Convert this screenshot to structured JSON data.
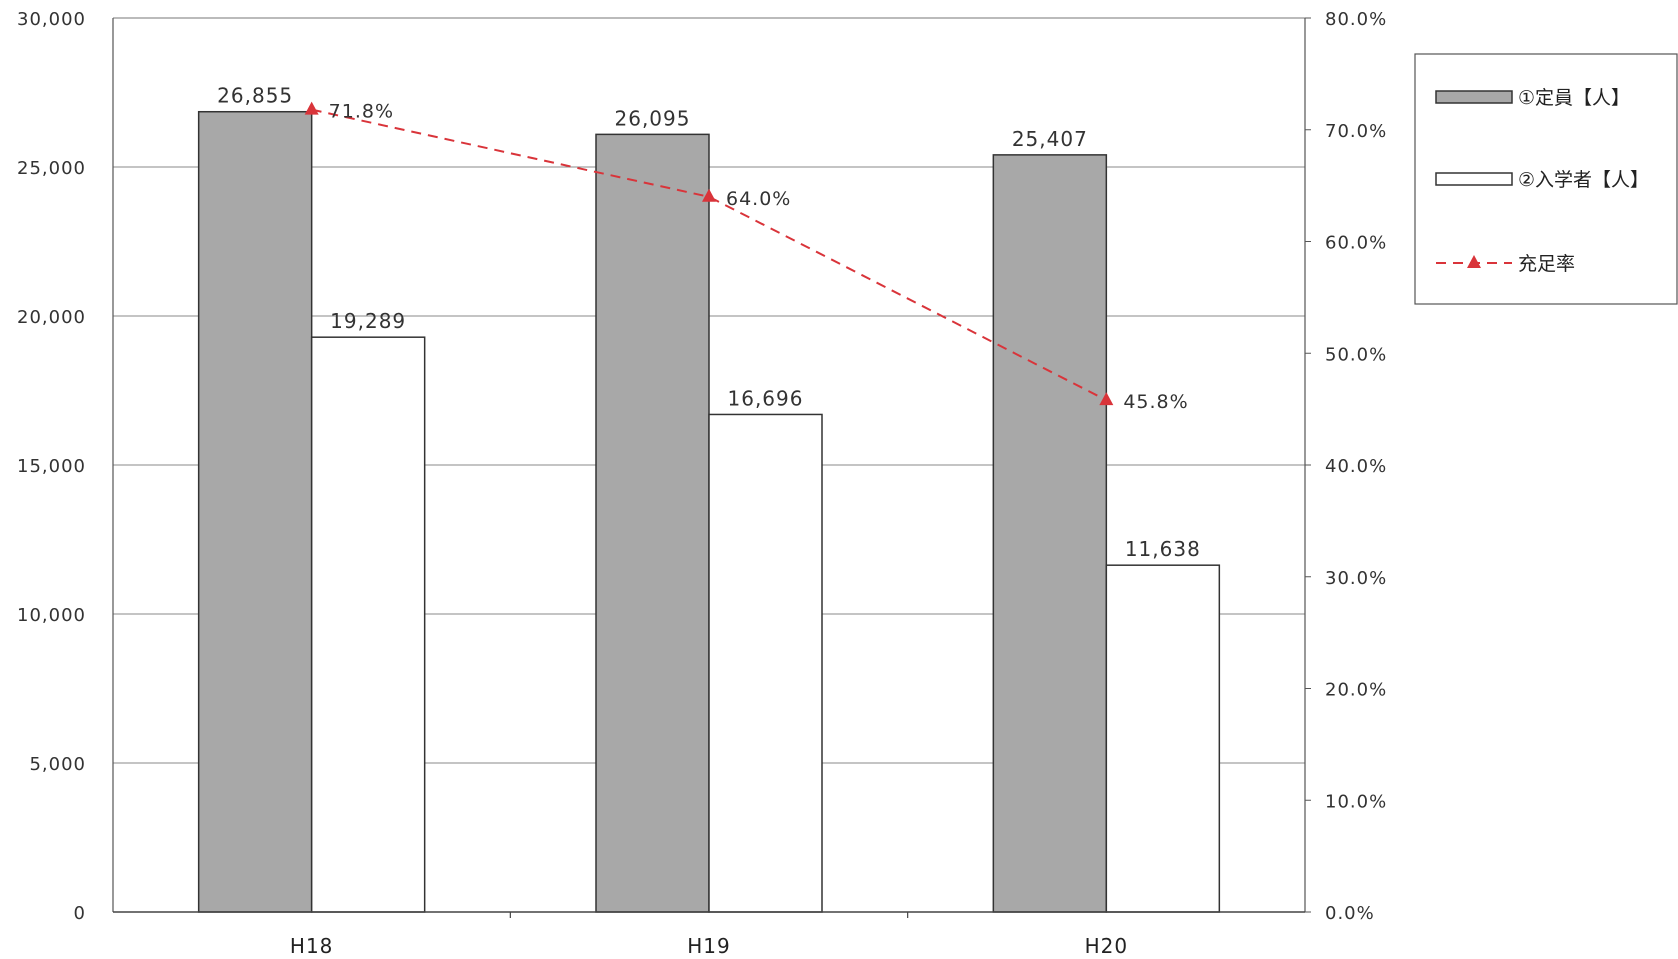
{
  "chart_data": {
    "type": "bar",
    "categories": [
      "H18",
      "H19",
      "H20"
    ],
    "series": [
      {
        "name": "①定員【人】",
        "type": "bar",
        "axis": "left",
        "values": [
          26855,
          26095,
          25407
        ],
        "labels": [
          "26,855",
          "26,095",
          "25,407"
        ],
        "color": "#a8a8a8"
      },
      {
        "name": "②入学者【人】",
        "type": "bar",
        "axis": "left",
        "values": [
          19289,
          16696,
          11638
        ],
        "labels": [
          "19,289",
          "16,696",
          "11,638"
        ],
        "color": "#ffffff"
      },
      {
        "name": "充足率",
        "type": "line",
        "axis": "right",
        "values": [
          71.8,
          64.0,
          45.8
        ],
        "labels": [
          "71.8%",
          "64.0%",
          "45.8%"
        ],
        "color": "#d9343a",
        "style": "dashed",
        "marker": "triangle"
      }
    ],
    "y_left": {
      "ylim": [
        0,
        30000
      ],
      "ticks": [
        0,
        5000,
        10000,
        15000,
        20000,
        25000,
        30000
      ],
      "tick_labels": [
        "0",
        "5,000",
        "10,000",
        "15,000",
        "20,000",
        "25,000",
        "30,000"
      ]
    },
    "y_right": {
      "ylim": [
        0,
        80
      ],
      "ticks": [
        0,
        10,
        20,
        30,
        40,
        50,
        60,
        70,
        80
      ],
      "tick_labels": [
        "0.0%",
        "10.0%",
        "20.0%",
        "30.0%",
        "40.0%",
        "50.0%",
        "60.0%",
        "70.0%",
        "80.0%"
      ]
    },
    "grid": true,
    "legend": {
      "placement": "right"
    }
  }
}
